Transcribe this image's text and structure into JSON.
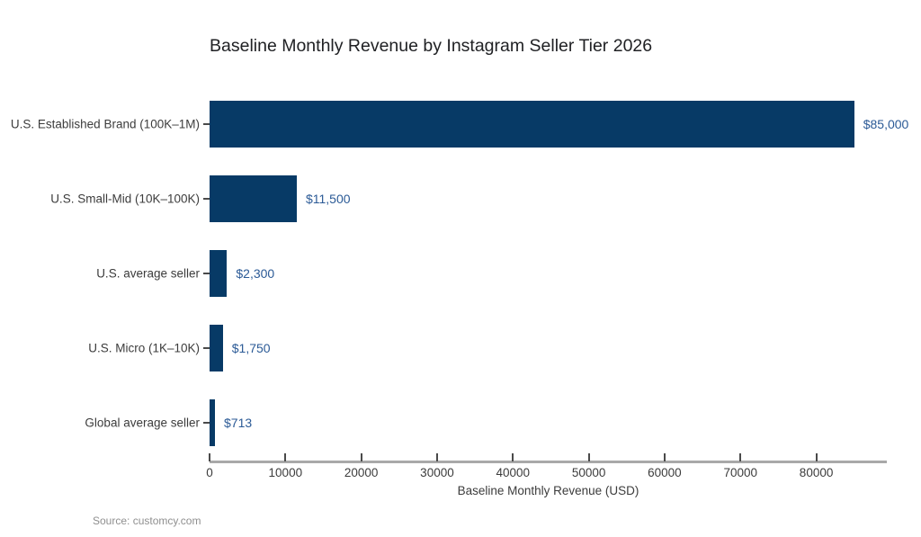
{
  "chart_data": {
    "type": "bar",
    "orientation": "horizontal",
    "title": "Baseline Monthly Revenue by Instagram Seller Tier 2026",
    "categories": [
      "U.S. Established Brand (100K–1M)",
      "U.S. Small-Mid (10K–100K)",
      "U.S. average seller",
      "U.S. Micro (1K–10K)",
      "Global average seller"
    ],
    "values": [
      85000,
      11500,
      2300,
      1750,
      713
    ],
    "value_labels": [
      "$85,000",
      "$11,500",
      "$2,300",
      "$1,750",
      "$713"
    ],
    "xlabel": "Baseline Monthly Revenue (USD)",
    "xticks": [
      0,
      10000,
      20000,
      30000,
      40000,
      50000,
      60000,
      70000,
      80000
    ],
    "xtick_labels": [
      "0",
      "10000",
      "20000",
      "30000",
      "40000",
      "50000",
      "60000",
      "70000",
      "80000"
    ],
    "xlim": [
      0,
      89300
    ],
    "grid": false,
    "legend": false,
    "bar_color": "#073a66",
    "value_label_color": "#2b5a96",
    "axis_line_color": "#a9a9a9",
    "tick_color": "#4a4a4a",
    "text_color": "#3c3c3c",
    "title_color": "#202124",
    "background_color": "#ffffff"
  },
  "source": "Source: customcy.com"
}
